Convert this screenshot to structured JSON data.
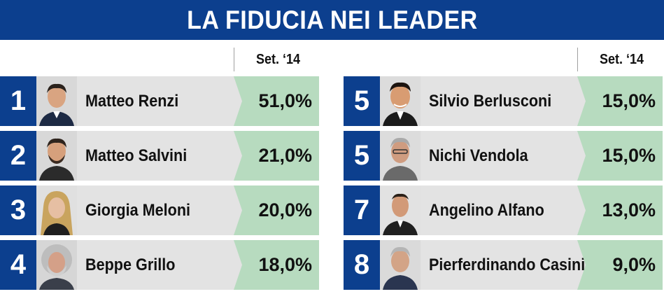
{
  "title": "LA FIDUCIA NEI LEADER",
  "column_header": "Set. ‘14",
  "colors": {
    "title_bg": "#0c3f8e",
    "rank_bg": "#0c3f8e",
    "name_bg": "#e3e3e3",
    "value_bg": "#b7dbbf"
  },
  "chart_data": {
    "type": "table",
    "title": "LA FIDUCIA NEI LEADER",
    "columns": [
      "Set. ‘14"
    ],
    "rows": [
      {
        "rank": "1",
        "name": "Matteo Renzi",
        "value": 51.0,
        "label": "51,0%"
      },
      {
        "rank": "2",
        "name": "Matteo Salvini",
        "value": 21.0,
        "label": "21,0%"
      },
      {
        "rank": "3",
        "name": "Giorgia Meloni",
        "value": 20.0,
        "label": "20,0%"
      },
      {
        "rank": "4",
        "name": "Beppe Grillo",
        "value": 18.0,
        "label": "18,0%"
      },
      {
        "rank": "5",
        "name": "Silvio Berlusconi",
        "value": 15.0,
        "label": "15,0%"
      },
      {
        "rank": "5",
        "name": "Nichi Vendola",
        "value": 15.0,
        "label": "15,0%"
      },
      {
        "rank": "7",
        "name": "Angelino Alfano",
        "value": 13.0,
        "label": "13,0%"
      },
      {
        "rank": "8",
        "name": "Pierferdinando Casini",
        "value": 9.0,
        "label": "9,0%"
      }
    ]
  },
  "icons": {
    "portrait": "person-portrait-icon"
  }
}
